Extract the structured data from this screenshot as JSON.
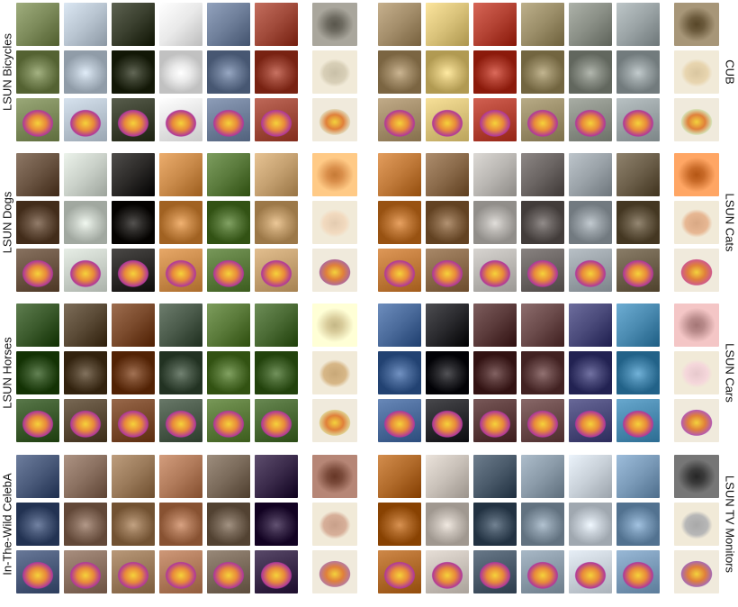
{
  "panels": [
    {
      "id": "lsun-bicycles",
      "label": "LSUN Bicycles",
      "side": "left",
      "palette": [
        "#7c8a5a",
        "#b8c4d0",
        "#3a3f2e",
        "#e9e9e9",
        "#6f7f9a",
        "#a04a3a"
      ],
      "avg": [
        "#6d6a60",
        "#c9c0a8",
        "#e2d6b4"
      ]
    },
    {
      "id": "cub",
      "label": "CUB",
      "side": "right",
      "palette": [
        "#a38d6a",
        "#d9c27a",
        "#b34233",
        "#9a8d68",
        "#8a8f86",
        "#9aa3a5"
      ],
      "avg": [
        "#6b5a3c",
        "#d9c6a0",
        "#d6e1b5"
      ]
    },
    {
      "id": "lsun-dogs",
      "label": "LSUN Dogs",
      "side": "left",
      "palette": [
        "#6a5442",
        "#c9d0c8",
        "#2c2a28",
        "#c98a4a",
        "#5a7a3c",
        "#c4a070"
      ],
      "avg": [
        "#d98e4a",
        "#e3cbb0",
        "#b06a96"
      ]
    },
    {
      "id": "lsun-cats",
      "label": "LSUN Cats",
      "side": "right",
      "palette": [
        "#c07a3a",
        "#8a6a4a",
        "#b9b6b2",
        "#6a6462",
        "#9aa2a8",
        "#6c5f4a"
      ],
      "avg": [
        "#c86a28",
        "#d8a884",
        "#cf5a8a"
      ]
    },
    {
      "id": "lsun-horses",
      "label": "LSUN Horses",
      "side": "left",
      "palette": [
        "#3b5a2c",
        "#5a4a36",
        "#7a4a2c",
        "#4a5a4a",
        "#5a7a3a",
        "#4a6a34"
      ],
      "avg": [
        "#d8cb9a",
        "#c8a878",
        "#e0d090"
      ]
    },
    {
      "id": "lsun-cars",
      "label": "LSUN Cars",
      "side": "right",
      "palette": [
        "#4a6a9a",
        "#2a2a2e",
        "#5a3a3a",
        "#6a4a4a",
        "#4a4a7a",
        "#4a8ab0"
      ],
      "avg": [
        "#b88a8a",
        "#e6c8cc",
        "#b55ab0"
      ]
    },
    {
      "id": "celeba",
      "label": "In-The-Wild CelebA",
      "side": "left",
      "palette": [
        "#4a5a7a",
        "#8a7060",
        "#9a7a5a",
        "#b07a5a",
        "#7a6a5a",
        "#3a2a4a"
      ],
      "avg": [
        "#7a4a3a",
        "#c8a08a",
        "#b87a9a"
      ]
    },
    {
      "id": "lsun-tv-monitors",
      "label": "LSUN TV Monitors",
      "side": "right",
      "palette": [
        "#b06a2a",
        "#c8c0b8",
        "#4a5a6a",
        "#8a9aa8",
        "#c8d0d8",
        "#7a9ab8"
      ],
      "avg": [
        "#3a3a3a",
        "#a8a8a8",
        "#a86ab0"
      ]
    }
  ]
}
